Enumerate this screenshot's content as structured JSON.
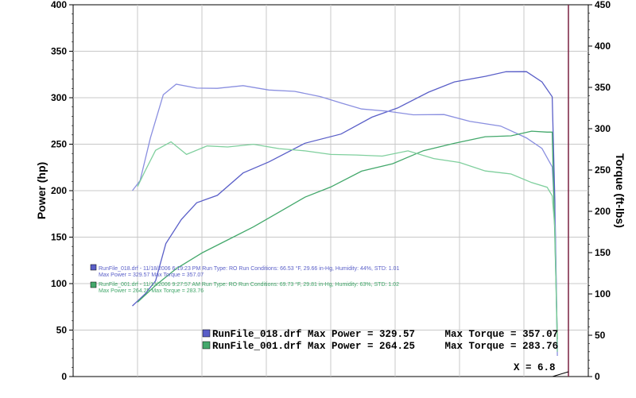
{
  "chart_data": {
    "type": "line",
    "ylabel_left": "Power (hp)",
    "ylabel_right": "Torque (ft-lbs)",
    "ylim_left": [
      0,
      400
    ],
    "ylim_right": [
      0,
      450
    ],
    "yticks_left": [
      "0",
      "50",
      "100",
      "150",
      "200",
      "250",
      "300",
      "350",
      "400"
    ],
    "yticks_right": [
      "0",
      "50",
      "100",
      "150",
      "200",
      "250",
      "300",
      "350",
      "400",
      "450"
    ],
    "grid": true,
    "colors": {
      "run018": "#5a5fc8",
      "run001": "#43a86b",
      "run018_light": "#8a8fe0",
      "run001_light": "#7fcf9d",
      "cursor": "#7a2040"
    },
    "legend_small": [
      {
        "icon": "blue-square-icon",
        "line1": "RunFile_018.drf - 11/18/2006 6:19:23 PM  Run Type: RO  Run Conditions: 66.53 °F, 29.66 in-Hg,  Humidity: 44%, STD: 1.01",
        "line2": "Max Power = 329.57  Max Torque = 357.07"
      },
      {
        "icon": "green-square-icon",
        "line1": "RunFile_001.drf - 11/13/2006 9:27:57 AM  Run Type: RO  Run Conditions: 69.73 °F, 29.81 in-Hg,  Humidity: 63%, STD: 1.02",
        "line2": "Max Power = 264.25  Max Torque = 283.76"
      }
    ],
    "summary": [
      {
        "icon": "blue-square-icon",
        "text": "RunFile_018.drf Max Power = 329.57     Max Torque = 357.07"
      },
      {
        "icon": "green-square-icon",
        "text": "RunFile_001.drf Max Power = 264.25     Max Torque = 283.76"
      }
    ],
    "cursor_label": "X = 6.8",
    "series": [
      {
        "name": "RunFile_018.drf Power",
        "axis": "left",
        "color": "run018",
        "x": [
          0.115,
          0.14,
          0.16,
          0.18,
          0.21,
          0.24,
          0.28,
          0.33,
          0.38,
          0.45,
          0.52,
          0.58,
          0.63,
          0.69,
          0.74,
          0.8,
          0.84,
          0.88,
          0.91,
          0.93,
          0.935,
          0.94
        ],
        "y": [
          76,
          88,
          104,
          142,
          170,
          186,
          196,
          218,
          232,
          250,
          262,
          278,
          290,
          305,
          318,
          322,
          329,
          327,
          318,
          300,
          190,
          30
        ]
      },
      {
        "name": "RunFile_018.drf Torque",
        "axis": "right",
        "color": "run018_light",
        "x": [
          0.115,
          0.13,
          0.15,
          0.175,
          0.2,
          0.24,
          0.28,
          0.33,
          0.38,
          0.43,
          0.48,
          0.52,
          0.56,
          0.61,
          0.66,
          0.72,
          0.77,
          0.83,
          0.88,
          0.91,
          0.93,
          0.935,
          0.94
        ],
        "y": [
          225,
          236,
          290,
          340,
          355,
          348,
          350,
          351,
          348,
          344,
          340,
          330,
          325,
          320,
          318,
          316,
          310,
          302,
          290,
          275,
          255,
          200,
          25
        ]
      },
      {
        "name": "RunFile_001.drf Power",
        "axis": "left",
        "color": "run001",
        "x": [
          0.125,
          0.16,
          0.2,
          0.25,
          0.3,
          0.35,
          0.4,
          0.45,
          0.5,
          0.56,
          0.62,
          0.68,
          0.74,
          0.8,
          0.85,
          0.89,
          0.92,
          0.93,
          0.935,
          0.94
        ],
        "y": [
          80,
          97,
          117,
          132,
          148,
          160,
          178,
          192,
          205,
          220,
          230,
          242,
          252,
          257,
          260,
          263,
          264,
          262,
          150,
          40
        ]
      },
      {
        "name": "RunFile_001.drf Torque",
        "axis": "right",
        "color": "run001_light",
        "x": [
          0.125,
          0.14,
          0.16,
          0.19,
          0.22,
          0.26,
          0.3,
          0.35,
          0.4,
          0.45,
          0.5,
          0.55,
          0.6,
          0.65,
          0.7,
          0.75,
          0.8,
          0.85,
          0.89,
          0.92,
          0.93,
          0.935,
          0.94
        ],
        "y": [
          230,
          248,
          275,
          283,
          270,
          278,
          279,
          280,
          277,
          272,
          270,
          267,
          268,
          272,
          265,
          258,
          250,
          244,
          236,
          228,
          220,
          180,
          30
        ]
      }
    ]
  }
}
